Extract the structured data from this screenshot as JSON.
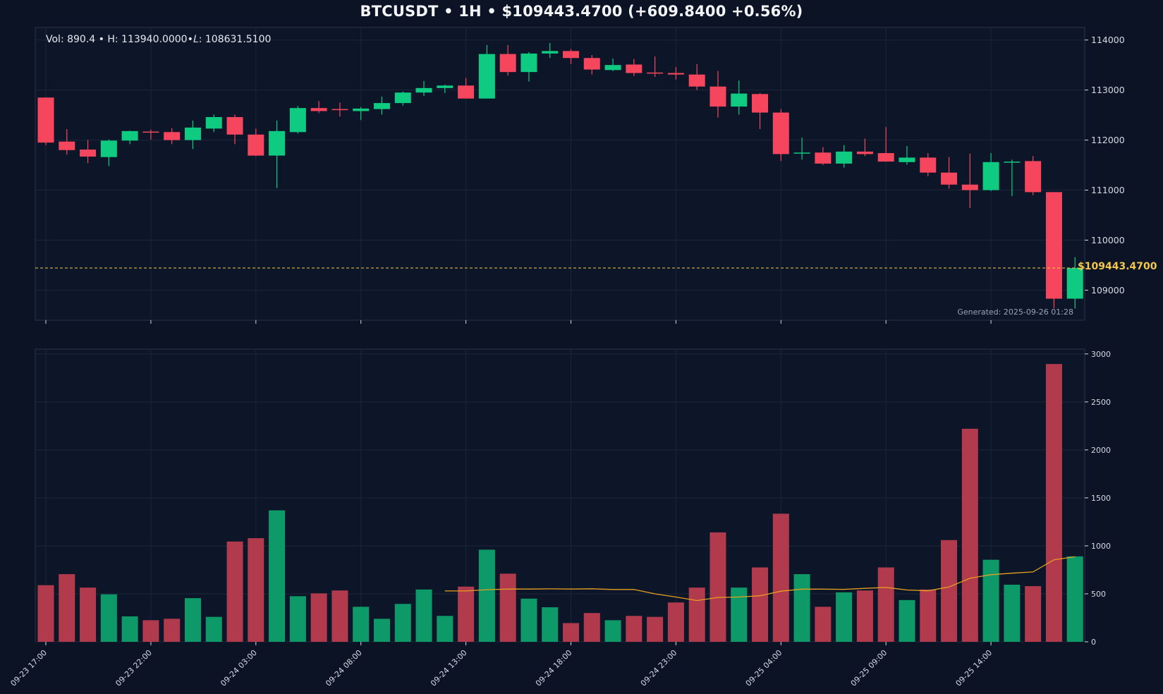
{
  "header": {
    "title": "BTCUSDT • 1H • $109443.4700 (+609.8400 +0.56%)",
    "info": "Vol: 890.4 • H: 113940.0000•𝐿: 108631.5100",
    "generated": "Generated: 2025-09-26 01:28",
    "last_price_label": "$109443.4700"
  },
  "colors": {
    "up": "#0ecb81",
    "down": "#f6465d",
    "up_vol": "#0e9a68",
    "down_vol": "#b23a4d",
    "ma": "#e6a020",
    "last_price": "#f2c94c",
    "background": "#0b1324",
    "panel": "#0d1629"
  },
  "chart_data": [
    {
      "type": "candlestick",
      "title": "BTCUSDT • 1H • $109443.4700 (+609.8400 +0.56%)",
      "ylim": [
        108400,
        114250
      ],
      "yticks": [
        "109000",
        "110000",
        "111000",
        "112000",
        "113000",
        "114000"
      ],
      "last_price": 109443.47,
      "candles": [
        {
          "o": 112850,
          "h": 112850,
          "l": 111900,
          "c": 111950
        },
        {
          "o": 111970,
          "h": 112220,
          "l": 111710,
          "c": 111800
        },
        {
          "o": 111810,
          "h": 112000,
          "l": 111540,
          "c": 111670
        },
        {
          "o": 111660,
          "h": 112010,
          "l": 111480,
          "c": 111990
        },
        {
          "o": 111990,
          "h": 112190,
          "l": 111920,
          "c": 112180
        },
        {
          "o": 112170,
          "h": 112210,
          "l": 112010,
          "c": 112150
        },
        {
          "o": 112160,
          "h": 112240,
          "l": 111920,
          "c": 112000
        },
        {
          "o": 112000,
          "h": 112390,
          "l": 111820,
          "c": 112250
        },
        {
          "o": 112230,
          "h": 112510,
          "l": 112160,
          "c": 112460
        },
        {
          "o": 112460,
          "h": 112510,
          "l": 111920,
          "c": 112110
        },
        {
          "o": 112110,
          "h": 112230,
          "l": 111680,
          "c": 111690
        },
        {
          "o": 111690,
          "h": 112390,
          "l": 111040,
          "c": 112180
        },
        {
          "o": 112160,
          "h": 112680,
          "l": 112130,
          "c": 112640
        },
        {
          "o": 112640,
          "h": 112780,
          "l": 112540,
          "c": 112580
        },
        {
          "o": 112620,
          "h": 112750,
          "l": 112470,
          "c": 112600
        },
        {
          "o": 112580,
          "h": 112660,
          "l": 112400,
          "c": 112630
        },
        {
          "o": 112620,
          "h": 112870,
          "l": 112510,
          "c": 112740
        },
        {
          "o": 112740,
          "h": 112970,
          "l": 112690,
          "c": 112950
        },
        {
          "o": 112950,
          "h": 113180,
          "l": 112880,
          "c": 113040
        },
        {
          "o": 113040,
          "h": 113110,
          "l": 112940,
          "c": 113090
        },
        {
          "o": 113090,
          "h": 113240,
          "l": 112830,
          "c": 112830
        },
        {
          "o": 112830,
          "h": 113900,
          "l": 112830,
          "c": 113720
        },
        {
          "o": 113720,
          "h": 113900,
          "l": 113290,
          "c": 113360
        },
        {
          "o": 113360,
          "h": 113760,
          "l": 113170,
          "c": 113730
        },
        {
          "o": 113730,
          "h": 113940,
          "l": 113640,
          "c": 113780
        },
        {
          "o": 113780,
          "h": 113820,
          "l": 113520,
          "c": 113640
        },
        {
          "o": 113640,
          "h": 113700,
          "l": 113310,
          "c": 113410
        },
        {
          "o": 113400,
          "h": 113630,
          "l": 113380,
          "c": 113500
        },
        {
          "o": 113510,
          "h": 113620,
          "l": 113280,
          "c": 113340
        },
        {
          "o": 113350,
          "h": 113670,
          "l": 113260,
          "c": 113340
        },
        {
          "o": 113340,
          "h": 113460,
          "l": 113210,
          "c": 113310
        },
        {
          "o": 113310,
          "h": 113520,
          "l": 113000,
          "c": 113070
        },
        {
          "o": 113070,
          "h": 113380,
          "l": 112450,
          "c": 112670
        },
        {
          "o": 112670,
          "h": 113190,
          "l": 112510,
          "c": 112930
        },
        {
          "o": 112920,
          "h": 112940,
          "l": 112220,
          "c": 112550
        },
        {
          "o": 112550,
          "h": 112620,
          "l": 111580,
          "c": 111720
        },
        {
          "o": 111730,
          "h": 112050,
          "l": 111610,
          "c": 111750
        },
        {
          "o": 111750,
          "h": 111860,
          "l": 111500,
          "c": 111530
        },
        {
          "o": 111530,
          "h": 111900,
          "l": 111450,
          "c": 111770
        },
        {
          "o": 111770,
          "h": 112030,
          "l": 111680,
          "c": 111720
        },
        {
          "o": 111740,
          "h": 112260,
          "l": 111570,
          "c": 111570
        },
        {
          "o": 111560,
          "h": 111880,
          "l": 111510,
          "c": 111650
        },
        {
          "o": 111650,
          "h": 111740,
          "l": 111280,
          "c": 111350
        },
        {
          "o": 111350,
          "h": 111660,
          "l": 111030,
          "c": 111110
        },
        {
          "o": 111110,
          "h": 111730,
          "l": 110640,
          "c": 111000
        },
        {
          "o": 111000,
          "h": 111740,
          "l": 110980,
          "c": 111560
        },
        {
          "o": 111560,
          "h": 111610,
          "l": 110880,
          "c": 111570
        },
        {
          "o": 111580,
          "h": 111680,
          "l": 110900,
          "c": 110960
        },
        {
          "o": 110960,
          "h": 110960,
          "l": 108640,
          "c": 108830
        },
        {
          "o": 108830,
          "h": 109660,
          "l": 108631,
          "c": 109443
        }
      ]
    },
    {
      "type": "bar",
      "ylim": [
        0,
        3050
      ],
      "yticks": [
        "0",
        "500",
        "1000",
        "1500",
        "2000",
        "2500",
        "3000"
      ],
      "volumes": [
        590,
        705,
        565,
        495,
        265,
        225,
        240,
        455,
        260,
        1045,
        1080,
        1370,
        475,
        505,
        535,
        365,
        240,
        395,
        545,
        270,
        575,
        960,
        710,
        450,
        360,
        195,
        300,
        225,
        270,
        260,
        410,
        565,
        1140,
        565,
        775,
        1335,
        705,
        365,
        515,
        535,
        775,
        435,
        545,
        1060,
        2220,
        855,
        595,
        580,
        2895,
        890
      ],
      "ma": [
        null,
        null,
        null,
        null,
        null,
        null,
        null,
        null,
        null,
        null,
        null,
        null,
        null,
        null,
        null,
        null,
        null,
        null,
        null,
        530,
        530,
        543,
        550,
        550,
        552,
        550,
        553,
        545,
        545,
        500,
        467,
        430,
        462,
        467,
        480,
        528,
        549,
        549,
        547,
        557,
        567,
        540,
        531,
        571,
        662,
        700,
        715,
        728,
        855,
        886
      ],
      "x_tick_labels": [
        "09-23 17:00",
        "09-23 22:00",
        "09-24 03:00",
        "09-24 08:00",
        "09-24 13:00",
        "09-24 18:00",
        "09-24 23:00",
        "09-25 04:00",
        "09-25 09:00",
        "09-25 14:00"
      ],
      "x_tick_every": 5
    }
  ]
}
